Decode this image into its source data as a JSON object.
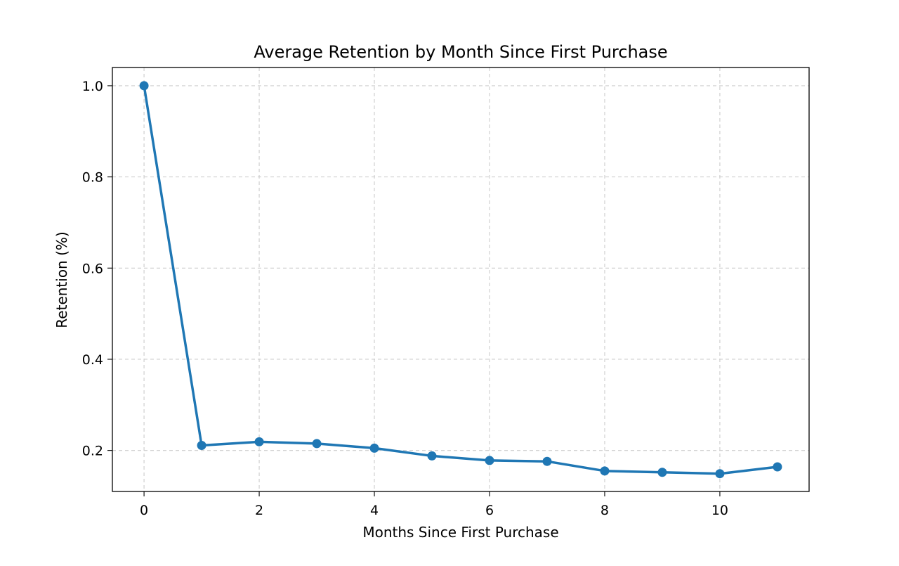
{
  "chart_data": {
    "type": "line",
    "title": "Average Retention by Month Since First Purchase",
    "xlabel": "Months Since First Purchase",
    "ylabel": "Retention (%)",
    "x": [
      0,
      1,
      2,
      3,
      4,
      5,
      6,
      7,
      8,
      9,
      10,
      11
    ],
    "series": [
      {
        "values": [
          1.0,
          0.211,
          0.219,
          0.215,
          0.205,
          0.188,
          0.178,
          0.176,
          0.155,
          0.152,
          0.149,
          0.164
        ],
        "color": "#1f77b4",
        "marker": "circle"
      }
    ],
    "xlim": [
      -0.55,
      11.55
    ],
    "ylim": [
      0.11,
      1.04
    ],
    "xticks": [
      0,
      2,
      4,
      6,
      8,
      10
    ],
    "yticks": [
      0.2,
      0.4,
      0.6,
      0.8,
      1.0
    ],
    "xtick_labels": [
      "0",
      "2",
      "4",
      "6",
      "8",
      "10"
    ],
    "ytick_labels": [
      "0.2",
      "0.4",
      "0.6",
      "0.8",
      "1.0"
    ],
    "grid": true,
    "grid_style": "dashed",
    "grid_color": "#cccccc",
    "legend": "none"
  }
}
